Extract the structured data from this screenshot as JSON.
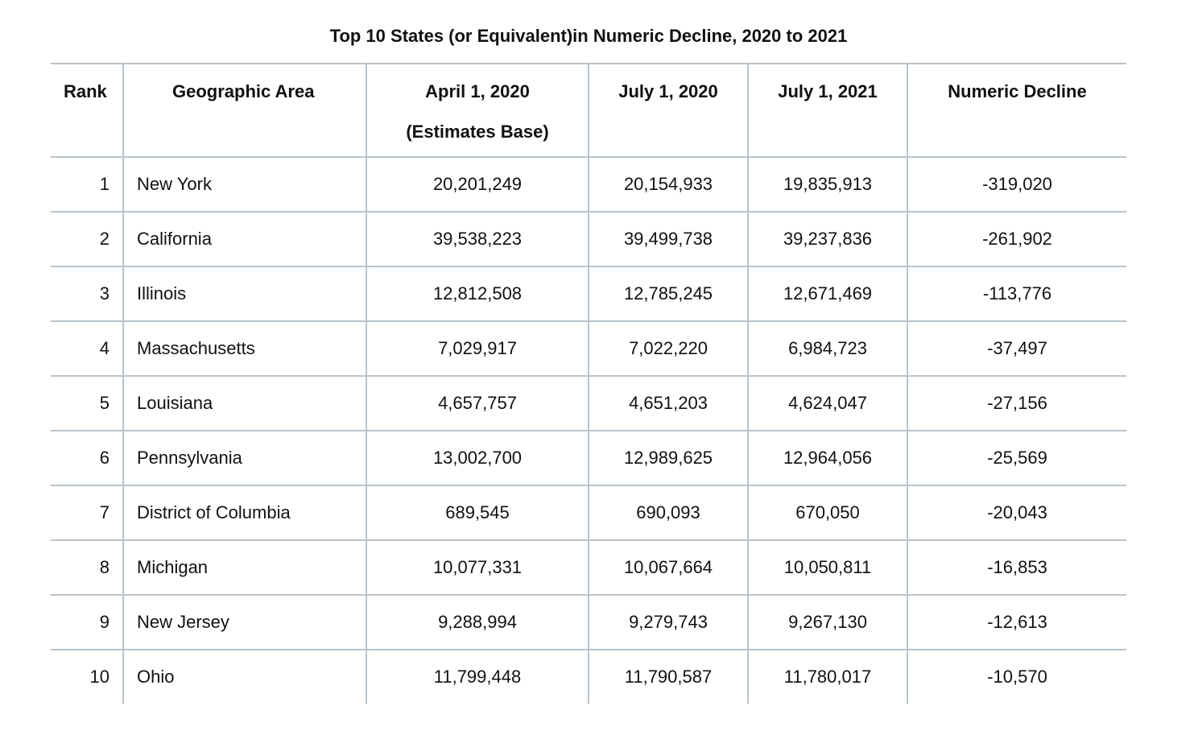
{
  "title": "Top 10 States (or Equivalent)in Numeric Decline, 2020 to 2021",
  "headers": {
    "rank": "Rank",
    "area": "Geographic Area",
    "april_2020_line1": "April 1, 2020",
    "april_2020_line2": "(Estimates Base)",
    "july_2020": "July 1, 2020",
    "july_2021": "July 1, 2021",
    "decline": "Numeric Decline"
  },
  "rows": [
    {
      "rank": "1",
      "area": "New York",
      "april_2020": "20,201,249",
      "july_2020": "20,154,933",
      "july_2021": "19,835,913",
      "decline": "-319,020"
    },
    {
      "rank": "2",
      "area": "California",
      "april_2020": "39,538,223",
      "july_2020": "39,499,738",
      "july_2021": "39,237,836",
      "decline": "-261,902"
    },
    {
      "rank": "3",
      "area": "Illinois",
      "april_2020": "12,812,508",
      "july_2020": "12,785,245",
      "july_2021": "12,671,469",
      "decline": "-113,776"
    },
    {
      "rank": "4",
      "area": "Massachusetts",
      "april_2020": "7,029,917",
      "july_2020": "7,022,220",
      "july_2021": "6,984,723",
      "decline": "-37,497"
    },
    {
      "rank": "5",
      "area": "Louisiana",
      "april_2020": "4,657,757",
      "july_2020": "4,651,203",
      "july_2021": "4,624,047",
      "decline": "-27,156"
    },
    {
      "rank": "6",
      "area": "Pennsylvania",
      "april_2020": "13,002,700",
      "july_2020": "12,989,625",
      "july_2021": "12,964,056",
      "decline": "-25,569"
    },
    {
      "rank": "7",
      "area": "District of Columbia",
      "april_2020": "689,545",
      "july_2020": "690,093",
      "july_2021": "670,050",
      "decline": "-20,043"
    },
    {
      "rank": "8",
      "area": "Michigan",
      "april_2020": "10,077,331",
      "july_2020": "10,067,664",
      "july_2021": "10,050,811",
      "decline": "-16,853"
    },
    {
      "rank": "9",
      "area": "New Jersey",
      "april_2020": "9,288,994",
      "july_2020": "9,279,743",
      "july_2021": "9,267,130",
      "decline": "-12,613"
    },
    {
      "rank": "10",
      "area": "Ohio",
      "april_2020": "11,799,448",
      "july_2020": "11,790,587",
      "july_2021": "11,780,017",
      "decline": "-10,570"
    }
  ]
}
